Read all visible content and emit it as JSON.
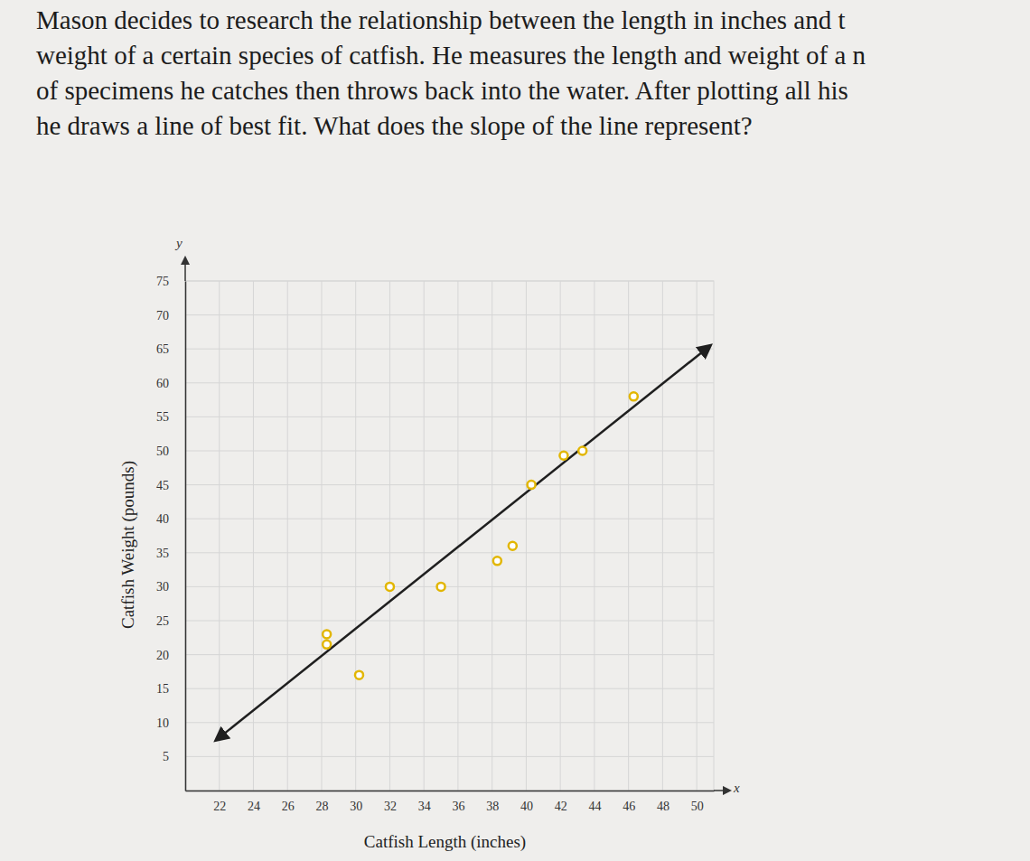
{
  "chart_data": {
    "type": "scatter",
    "title": [
      "Mason decides to research the relationship between the length in inches and t",
      "weight of a certain species of catfish. He measures the length and weight of a n",
      "of specimens he catches then throws back into the water. After plotting all his",
      "he draws a line of best fit. What does the slope of the line represent?"
    ],
    "x_label": "Catfish Length (inches)",
    "y_label": "Catfish Weight (pounds)",
    "annotations": [
      "y",
      "x"
    ],
    "x": [
      28.3,
      28.3,
      30.2,
      32,
      35,
      38.3,
      39.2,
      40.3,
      42.2,
      43.3,
      46.3
    ],
    "values": [
      23,
      21.5,
      17,
      30,
      30,
      33.8,
      36,
      45,
      49.3,
      50,
      58
    ],
    "color": "#e2b600",
    "marker": "circle",
    "fit_line": {
      "x": [
        21.8,
        50.8
      ],
      "y": [
        7.4,
        65.5
      ],
      "color": "#1f1f1f",
      "line_style": "solid"
    },
    "xlim": [
      20,
      51
    ],
    "ylim": [
      0,
      75
    ],
    "xticks": [
      22,
      24,
      26,
      28,
      30,
      32,
      34,
      36,
      38,
      40,
      42,
      44,
      46,
      48,
      50
    ],
    "yticks": [
      5,
      10,
      15,
      20,
      25,
      30,
      35,
      40,
      45,
      50,
      55,
      60,
      65,
      70,
      75
    ],
    "grid": true
  }
}
